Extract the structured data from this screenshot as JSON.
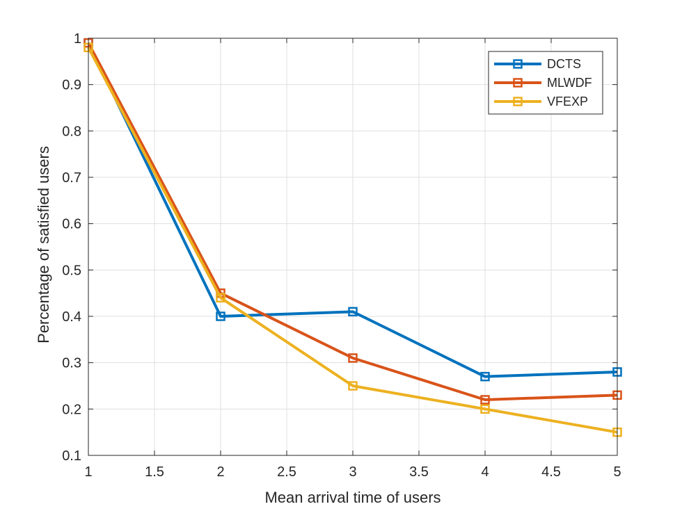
{
  "chart_data": {
    "type": "line",
    "title": "",
    "xlabel": "Mean arrival time of users",
    "ylabel": "Percentage of satisfied users",
    "xlim": [
      1,
      5
    ],
    "ylim": [
      0.1,
      1
    ],
    "xticks": [
      1,
      1.5,
      2,
      2.5,
      3,
      3.5,
      4,
      4.5,
      5
    ],
    "xtick_labels": [
      "1",
      "1.5",
      "2",
      "2.5",
      "3",
      "3.5",
      "4",
      "4.5",
      "5"
    ],
    "yticks": [
      0.1,
      0.2,
      0.3,
      0.4,
      0.5,
      0.6,
      0.7,
      0.8,
      0.9,
      1
    ],
    "ytick_labels": [
      "0.1",
      "0.2",
      "0.3",
      "0.4",
      "0.5",
      "0.6",
      "0.7",
      "0.8",
      "0.9",
      "1"
    ],
    "grid": true,
    "legend_position": "top-right",
    "marker": "square",
    "x": [
      1,
      2,
      3,
      4,
      5
    ],
    "series": [
      {
        "name": "DCTS",
        "color": "#0072BD",
        "values": [
          0.99,
          0.4,
          0.41,
          0.27,
          0.28
        ]
      },
      {
        "name": "MLWDF",
        "color": "#D95319",
        "values": [
          0.99,
          0.45,
          0.31,
          0.22,
          0.23
        ]
      },
      {
        "name": "VFEXP",
        "color": "#EDB120",
        "values": [
          0.98,
          0.44,
          0.25,
          0.2,
          0.15
        ]
      }
    ]
  }
}
